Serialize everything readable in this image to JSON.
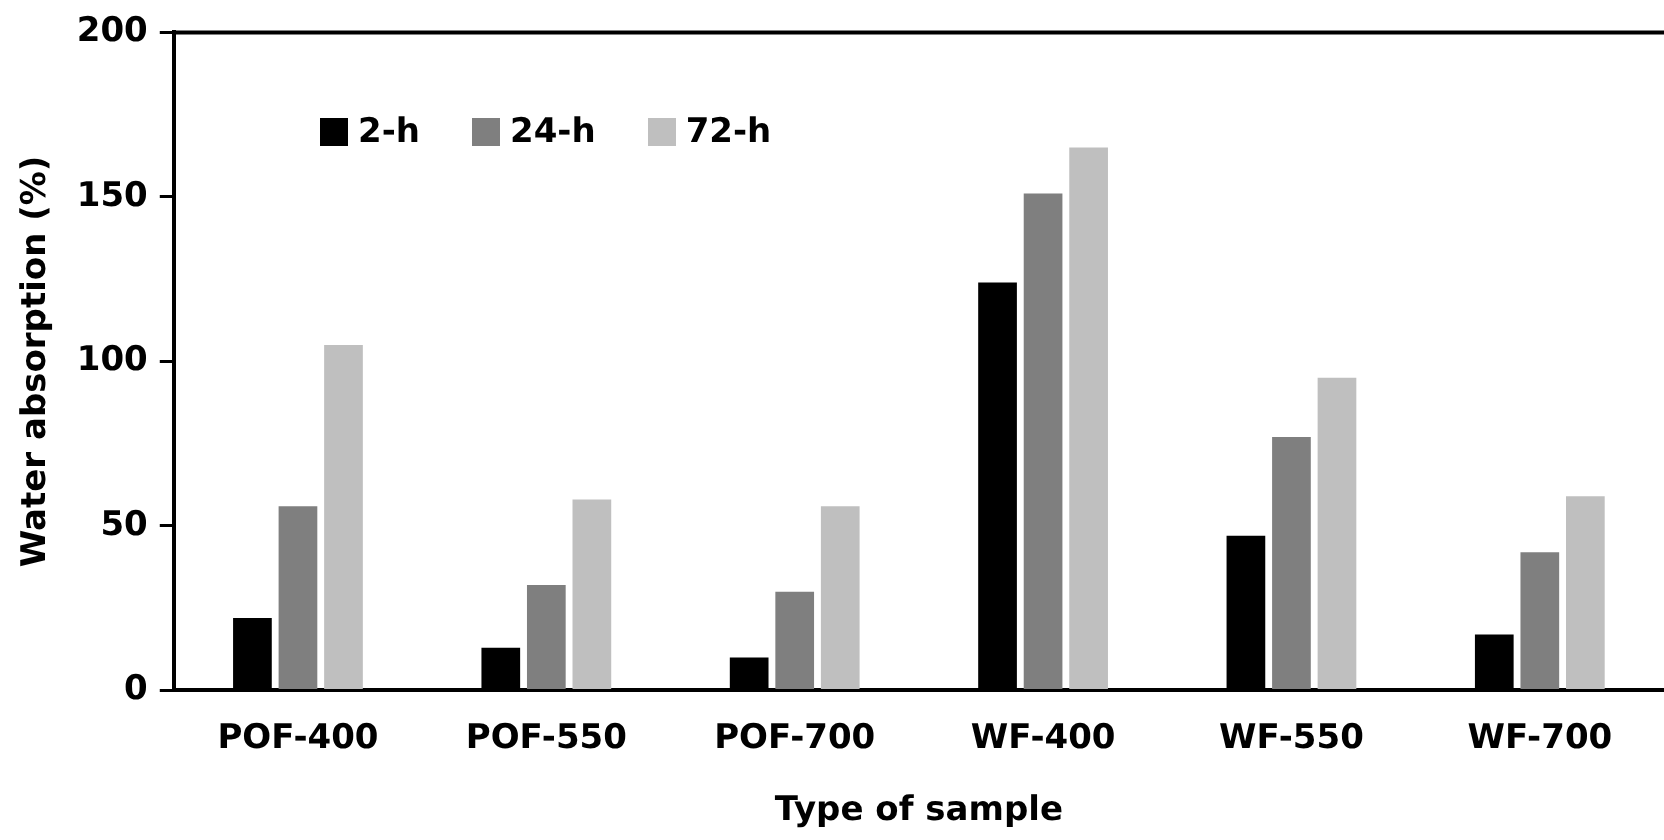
{
  "chart_data": {
    "type": "bar",
    "xlabel": "Type of sample",
    "ylabel": "Water absorption (%)",
    "categories": [
      "POF-400",
      "POF-550",
      "POF-700",
      "WF-400",
      "WF-550",
      "WF-700"
    ],
    "series": [
      {
        "name": "2-h",
        "color": "#000000",
        "values": [
          22,
          13,
          10,
          124,
          47,
          17
        ]
      },
      {
        "name": "24-h",
        "color": "#7f7f7f",
        "values": [
          56,
          32,
          30,
          151,
          77,
          42
        ]
      },
      {
        "name": "72-h",
        "color": "#bfbfbf",
        "values": [
          105,
          58,
          56,
          165,
          95,
          59
        ]
      }
    ],
    "ylim": [
      0,
      200
    ],
    "yticks": [
      0,
      50,
      100,
      150,
      200
    ],
    "grid": false,
    "legend": "top left"
  }
}
